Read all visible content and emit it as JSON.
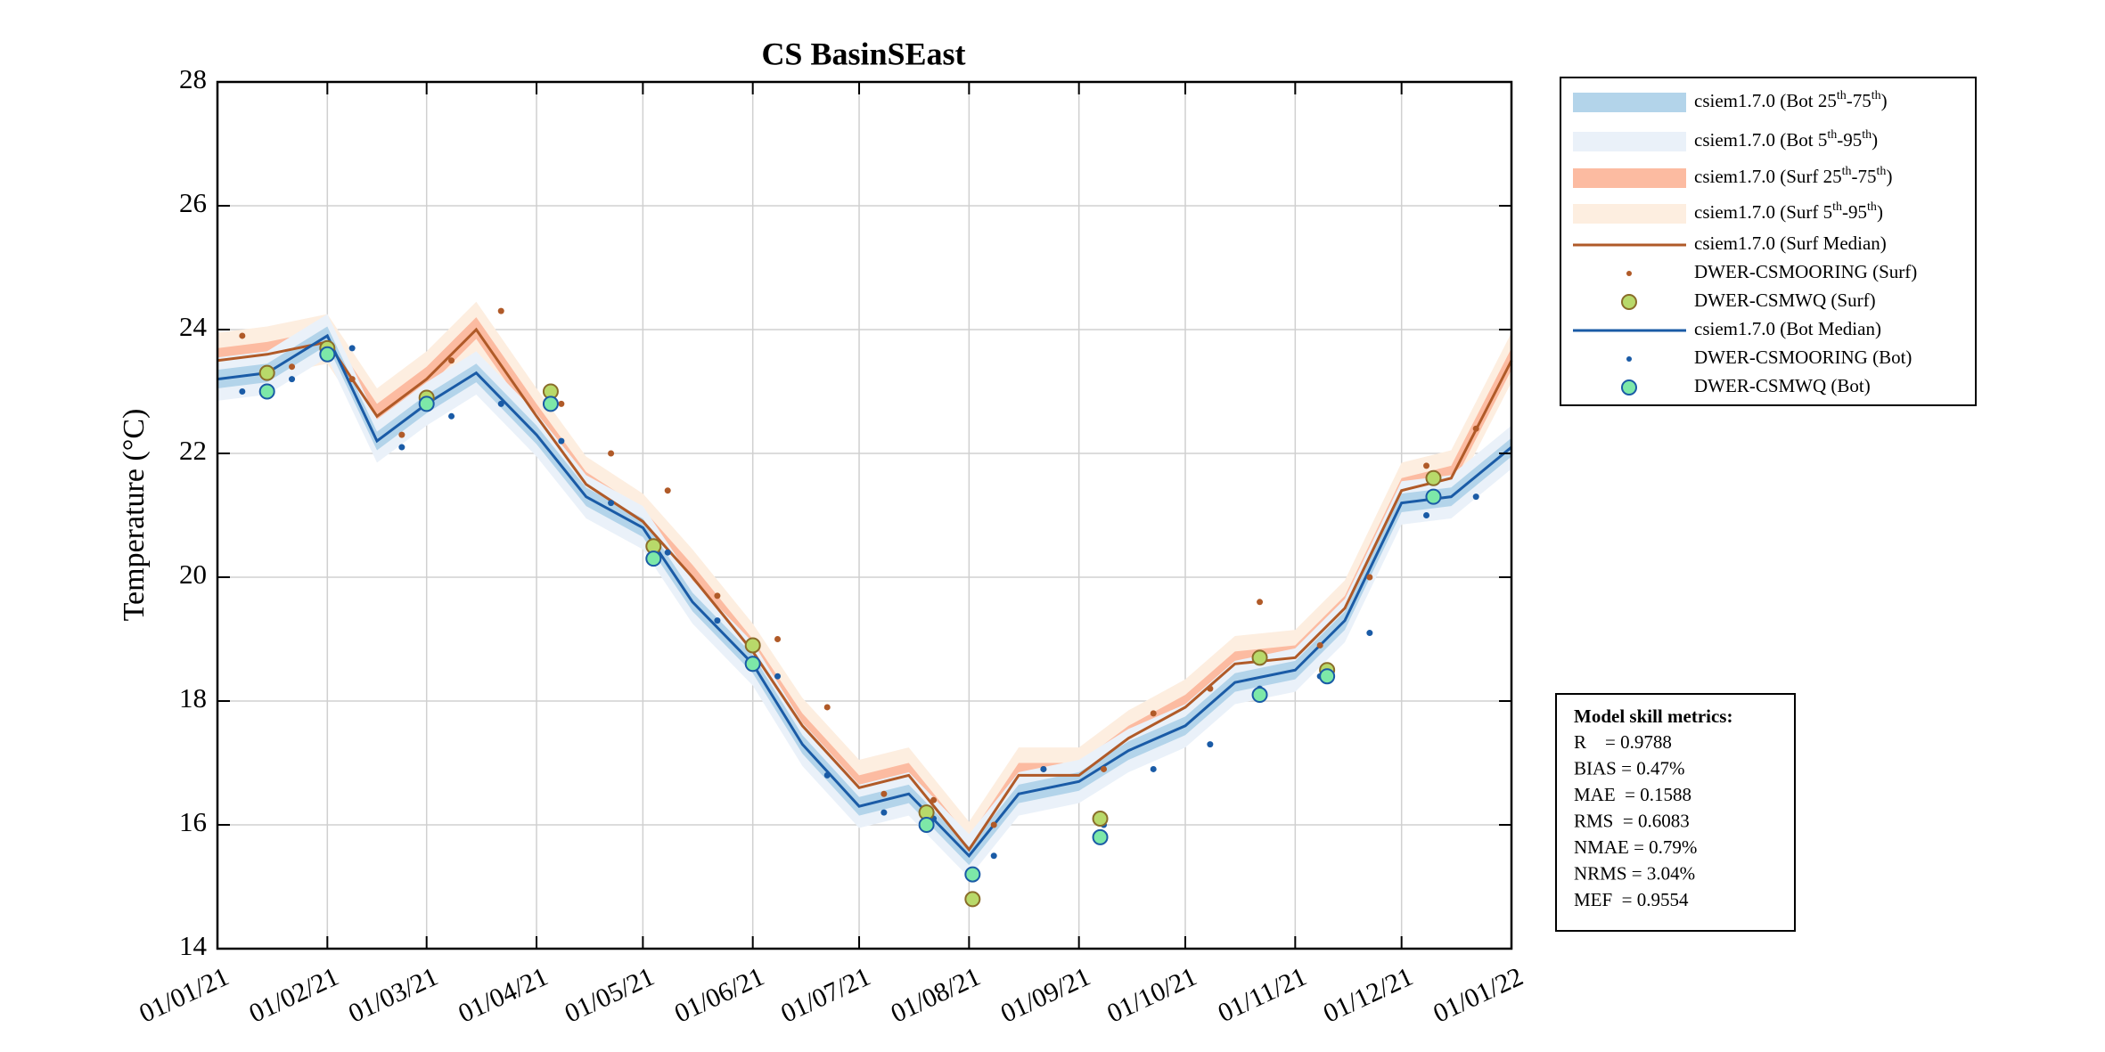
{
  "chart_data": {
    "type": "timeseries",
    "title": "CS BasinSEast",
    "y_label": "Temperature (°C)",
    "ylim": [
      14,
      28
    ],
    "yticks": [
      14,
      16,
      18,
      20,
      22,
      24,
      26,
      28
    ],
    "xlim": [
      "01/01/21",
      "01/01/22"
    ],
    "xticks": [
      "01/01/21",
      "01/02/21",
      "01/03/21",
      "01/04/21",
      "01/05/21",
      "01/06/21",
      "01/07/21",
      "01/08/21",
      "01/09/21",
      "01/10/21",
      "01/11/21",
      "01/12/21",
      "01/01/22"
    ],
    "grid": true,
    "x": [
      "01/01/21",
      "15/01/21",
      "01/02/21",
      "15/02/21",
      "01/03/21",
      "15/03/21",
      "01/04/21",
      "15/04/21",
      "01/05/21",
      "15/05/21",
      "01/06/21",
      "15/06/21",
      "01/07/21",
      "15/07/21",
      "01/08/21",
      "15/08/21",
      "01/09/21",
      "15/09/21",
      "01/10/21",
      "15/10/21",
      "01/11/21",
      "15/11/21",
      "01/12/21",
      "15/12/21",
      "01/01/22"
    ],
    "series": [
      {
        "name": "csiem1.7.0 (Bot 25th-75th)",
        "kind": "band",
        "color": "#b3d4ea",
        "lower": [
          23.05,
          23.15,
          23.75,
          22.05,
          22.65,
          23.15,
          22.15,
          21.15,
          20.65,
          19.45,
          18.45,
          17.15,
          16.15,
          16.35,
          15.35,
          16.35,
          16.55,
          17.05,
          17.45,
          18.15,
          18.35,
          19.15,
          21.05,
          21.15,
          21.95
        ],
        "upper": [
          23.35,
          23.45,
          24.05,
          22.35,
          22.95,
          23.45,
          22.45,
          21.45,
          20.95,
          19.75,
          18.75,
          17.45,
          16.45,
          16.65,
          15.65,
          16.65,
          16.85,
          17.35,
          17.75,
          18.45,
          18.65,
          19.45,
          21.35,
          21.45,
          22.25
        ]
      },
      {
        "name": "csiem1.7.0 (Bot 5th-95th)",
        "kind": "band",
        "color": "#eaf1f9",
        "lower": [
          22.85,
          22.95,
          23.55,
          21.85,
          22.45,
          22.95,
          21.95,
          20.95,
          20.45,
          19.25,
          18.25,
          16.95,
          15.95,
          16.15,
          15.15,
          16.15,
          16.35,
          16.85,
          17.25,
          17.95,
          18.15,
          18.95,
          20.85,
          20.95,
          21.75
        ],
        "upper": [
          23.55,
          23.65,
          24.25,
          22.55,
          23.15,
          23.65,
          22.65,
          21.65,
          21.15,
          19.95,
          18.95,
          17.65,
          16.65,
          16.85,
          15.85,
          16.85,
          17.05,
          17.55,
          17.95,
          18.65,
          18.85,
          19.65,
          21.55,
          21.65,
          22.45
        ]
      },
      {
        "name": "csiem1.7.0 (Surf 25th-75th)",
        "kind": "band",
        "color": "#fcbba1",
        "lower": [
          23.35,
          23.45,
          23.65,
          22.45,
          23.05,
          23.85,
          22.45,
          21.35,
          20.75,
          19.85,
          18.65,
          17.45,
          16.45,
          16.65,
          15.45,
          16.65,
          16.65,
          17.25,
          17.75,
          18.45,
          18.55,
          19.35,
          21.25,
          21.45,
          23.35
        ],
        "upper": [
          23.7,
          23.8,
          24.0,
          22.8,
          23.4,
          24.2,
          22.8,
          21.7,
          21.1,
          20.2,
          19.0,
          17.8,
          16.8,
          17.0,
          15.8,
          17.0,
          17.0,
          17.6,
          18.1,
          18.8,
          18.9,
          19.7,
          21.6,
          21.8,
          23.7
        ]
      },
      {
        "name": "csiem1.7.0 (Surf 5th-95th)",
        "kind": "band",
        "color": "#fdeee0",
        "lower": [
          23.15,
          23.25,
          23.45,
          22.25,
          22.85,
          23.65,
          22.25,
          21.15,
          20.55,
          19.65,
          18.45,
          17.25,
          16.25,
          16.45,
          15.25,
          16.45,
          16.45,
          17.05,
          17.55,
          18.25,
          18.35,
          19.15,
          21.05,
          21.25,
          23.15
        ],
        "upper": [
          23.95,
          24.05,
          24.25,
          23.05,
          23.65,
          24.45,
          23.05,
          21.95,
          21.35,
          20.45,
          19.25,
          18.05,
          17.05,
          17.25,
          16.05,
          17.25,
          17.25,
          17.85,
          18.35,
          19.05,
          19.15,
          19.95,
          21.85,
          22.05,
          23.95
        ]
      },
      {
        "name": "csiem1.7.0 (Surf Median)",
        "kind": "line",
        "color": "#b05a28",
        "values": [
          23.5,
          23.6,
          23.8,
          22.6,
          23.2,
          24.0,
          22.6,
          21.5,
          20.9,
          20.0,
          18.8,
          17.6,
          16.6,
          16.8,
          15.6,
          16.8,
          16.8,
          17.4,
          17.9,
          18.6,
          18.7,
          19.5,
          21.4,
          21.6,
          23.5
        ]
      },
      {
        "name": "DWER-CSMOORING (Surf)",
        "kind": "dots",
        "color": "#b05a28",
        "x": [
          "08/01/21",
          "22/01/21",
          "08/02/21",
          "22/02/21",
          "08/03/21",
          "22/03/21",
          "08/04/21",
          "22/04/21",
          "08/05/21",
          "22/05/21",
          "08/06/21",
          "22/06/21",
          "08/07/21",
          "22/07/21",
          "08/08/21",
          "22/08/21",
          "08/09/21",
          "22/09/21",
          "08/10/21",
          "22/10/21",
          "08/11/21",
          "22/11/21",
          "08/12/21",
          "22/12/21"
        ],
        "values": [
          23.9,
          23.4,
          23.2,
          22.3,
          23.5,
          24.3,
          22.8,
          22.0,
          21.4,
          19.7,
          19.0,
          17.9,
          16.5,
          16.4,
          16.0,
          16.9,
          16.9,
          17.8,
          18.2,
          19.6,
          18.9,
          20.0,
          21.8,
          22.4
        ]
      },
      {
        "name": "DWER-CSMWQ (Surf)",
        "kind": "circles",
        "color": "#b8d96a",
        "edgecolor": "#8a6d2a",
        "x": [
          "15/01/21",
          "01/02/21",
          "01/03/21",
          "05/04/21",
          "04/05/21",
          "01/06/21",
          "20/07/21",
          "02/08/21",
          "07/09/21",
          "22/10/21",
          "10/11/21",
          "10/12/21"
        ],
        "values": [
          23.3,
          23.7,
          22.9,
          23.0,
          20.5,
          18.9,
          16.2,
          14.8,
          16.1,
          18.7,
          18.5,
          21.6
        ]
      },
      {
        "name": "csiem1.7.0 (Bot Median)",
        "kind": "line",
        "color": "#1a5ba6",
        "values": [
          23.2,
          23.3,
          23.9,
          22.2,
          22.8,
          23.3,
          22.3,
          21.3,
          20.8,
          19.6,
          18.6,
          17.3,
          16.3,
          16.5,
          15.5,
          16.5,
          16.7,
          17.2,
          17.6,
          18.3,
          18.5,
          19.3,
          21.2,
          21.3,
          22.1
        ]
      },
      {
        "name": "DWER-CSMOORING (Bot)",
        "kind": "dots",
        "color": "#1a5ba6",
        "x": [
          "08/01/21",
          "22/01/21",
          "08/02/21",
          "22/02/21",
          "08/03/21",
          "22/03/21",
          "08/04/21",
          "22/04/21",
          "08/05/21",
          "22/05/21",
          "08/06/21",
          "22/06/21",
          "08/07/21",
          "22/07/21",
          "08/08/21",
          "22/08/21",
          "08/09/21",
          "22/09/21",
          "08/10/21",
          "22/10/21",
          "08/11/21",
          "22/11/21",
          "08/12/21",
          "22/12/21"
        ],
        "values": [
          23.0,
          23.2,
          23.7,
          22.1,
          22.6,
          22.8,
          22.2,
          21.2,
          20.4,
          19.3,
          18.4,
          16.8,
          16.2,
          16.1,
          15.5,
          16.9,
          16.0,
          16.9,
          17.3,
          18.2,
          18.4,
          19.1,
          21.0,
          21.3
        ]
      },
      {
        "name": "DWER-CSMWQ (Bot)",
        "kind": "circles",
        "color": "#7de8a8",
        "edgecolor": "#1a5ba6",
        "x": [
          "15/01/21",
          "01/02/21",
          "01/03/21",
          "05/04/21",
          "04/05/21",
          "01/06/21",
          "20/07/21",
          "02/08/21",
          "07/09/21",
          "22/10/21",
          "10/11/21",
          "10/12/21"
        ],
        "values": [
          23.0,
          23.6,
          22.8,
          22.8,
          20.3,
          18.6,
          16.0,
          15.2,
          15.8,
          18.1,
          18.4,
          21.3
        ]
      }
    ],
    "metrics": {
      "title": "Model skill metrics:",
      "lines": [
        "R    = 0.9788",
        "BIAS = 0.47%",
        "MAE  = 0.1588",
        "RMS  = 0.6083",
        "NMAE = 0.79%",
        "NRMS = 3.04%",
        "MEF  = 0.9554"
      ]
    }
  }
}
